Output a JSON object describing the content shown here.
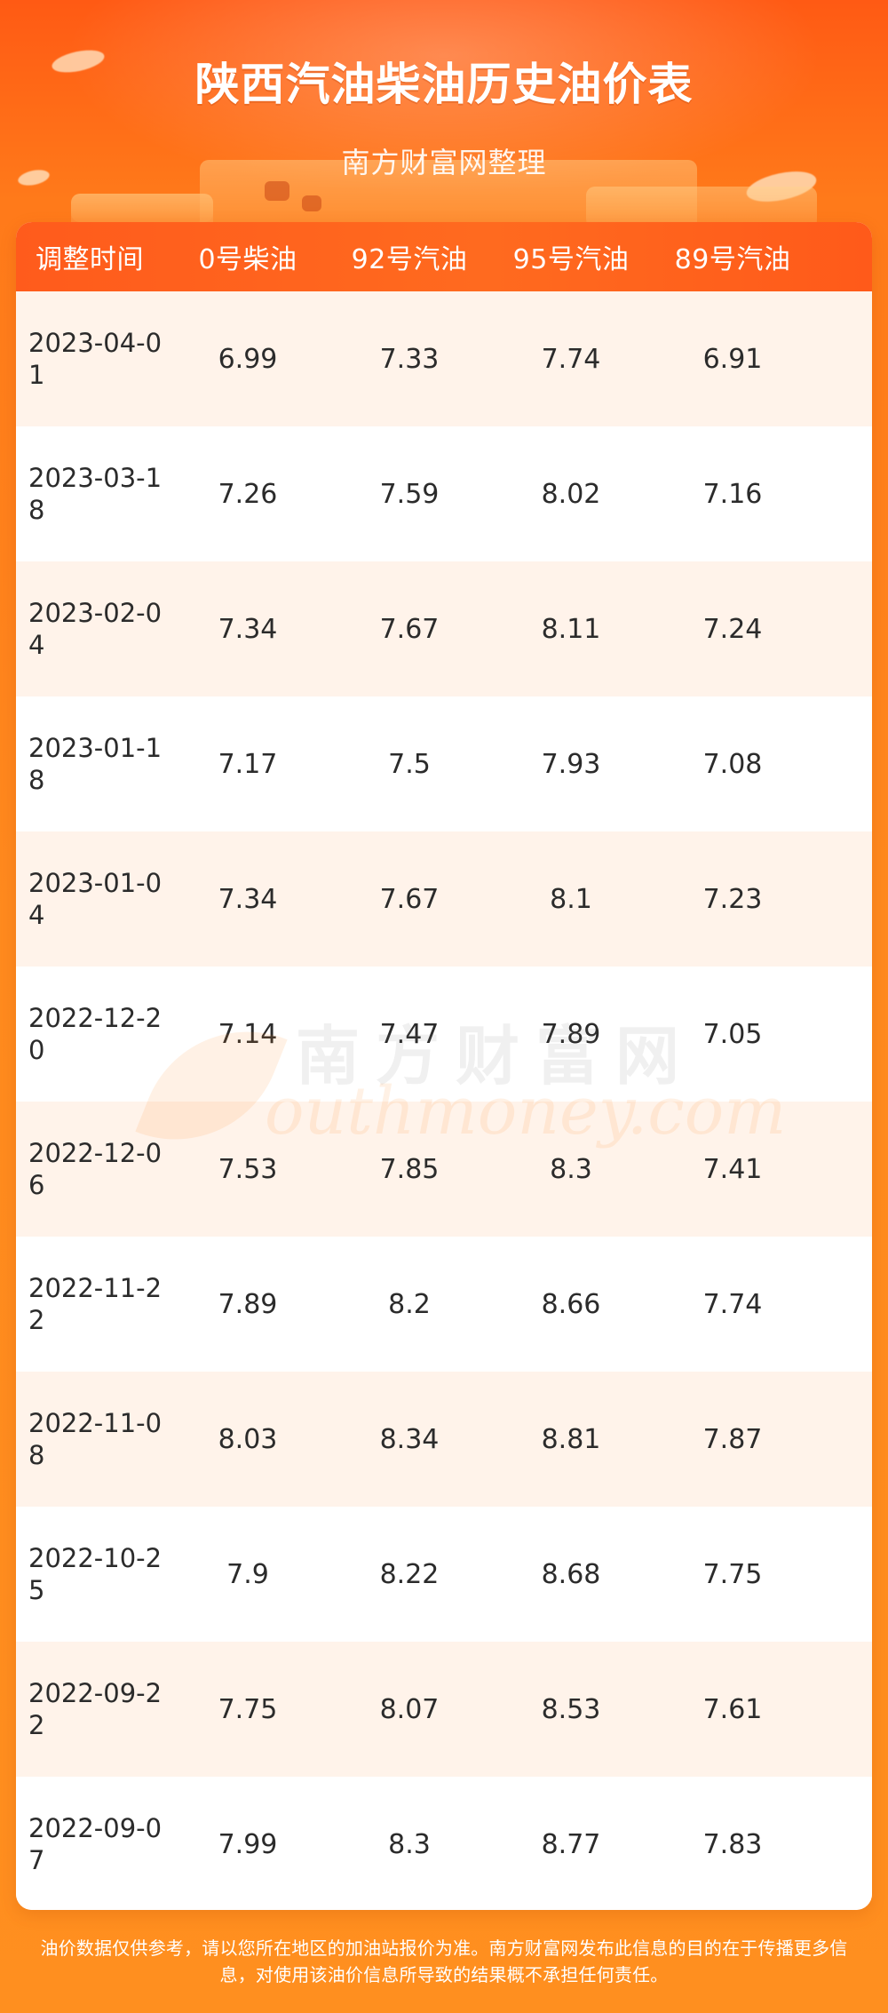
{
  "hero": {
    "title": "陕西汽油柴油历史油价表",
    "subtitle": "南方财富网整理"
  },
  "table": {
    "headers": [
      "调整时间",
      "0号柴油",
      "92号汽油",
      "95号汽油",
      "89号汽油"
    ],
    "rows": [
      {
        "date": "2023-04-01",
        "diesel0": "6.99",
        "gas92": "7.33",
        "gas95": "7.74",
        "gas89": "6.91"
      },
      {
        "date": "2023-03-18",
        "diesel0": "7.26",
        "gas92": "7.59",
        "gas95": "8.02",
        "gas89": "7.16"
      },
      {
        "date": "2023-02-04",
        "diesel0": "7.34",
        "gas92": "7.67",
        "gas95": "8.11",
        "gas89": "7.24"
      },
      {
        "date": "2023-01-18",
        "diesel0": "7.17",
        "gas92": "7.5",
        "gas95": "7.93",
        "gas89": "7.08"
      },
      {
        "date": "2023-01-04",
        "diesel0": "7.34",
        "gas92": "7.67",
        "gas95": "8.1",
        "gas89": "7.23"
      },
      {
        "date": "2022-12-20",
        "diesel0": "7.14",
        "gas92": "7.47",
        "gas95": "7.89",
        "gas89": "7.05"
      },
      {
        "date": "2022-12-06",
        "diesel0": "7.53",
        "gas92": "7.85",
        "gas95": "8.3",
        "gas89": "7.41"
      },
      {
        "date": "2022-11-22",
        "diesel0": "7.89",
        "gas92": "8.2",
        "gas95": "8.66",
        "gas89": "7.74"
      },
      {
        "date": "2022-11-08",
        "diesel0": "8.03",
        "gas92": "8.34",
        "gas95": "8.81",
        "gas89": "7.87"
      },
      {
        "date": "2022-10-25",
        "diesel0": "7.9",
        "gas92": "8.22",
        "gas95": "8.68",
        "gas89": "7.75"
      },
      {
        "date": "2022-09-22",
        "diesel0": "7.75",
        "gas92": "8.07",
        "gas95": "8.53",
        "gas89": "7.61"
      },
      {
        "date": "2022-09-07",
        "diesel0": "7.99",
        "gas92": "8.3",
        "gas95": "8.77",
        "gas89": "7.83"
      }
    ]
  },
  "watermark": {
    "cn": "南方财富网",
    "en": "outhmoney.com"
  },
  "footer": {
    "line1": "油价数据仅供参考，请以您所在地区的加油站报价为准。南方财富网发布此信息的目的在于传播更多信",
    "line2": "息，对使用该油价信息所导致的结果概不承担任何责任。"
  },
  "colors": {
    "header_bg": "#ff5b1c",
    "row_alt_bg": "#fff3ea",
    "page_bg": "#ff8a1e"
  }
}
